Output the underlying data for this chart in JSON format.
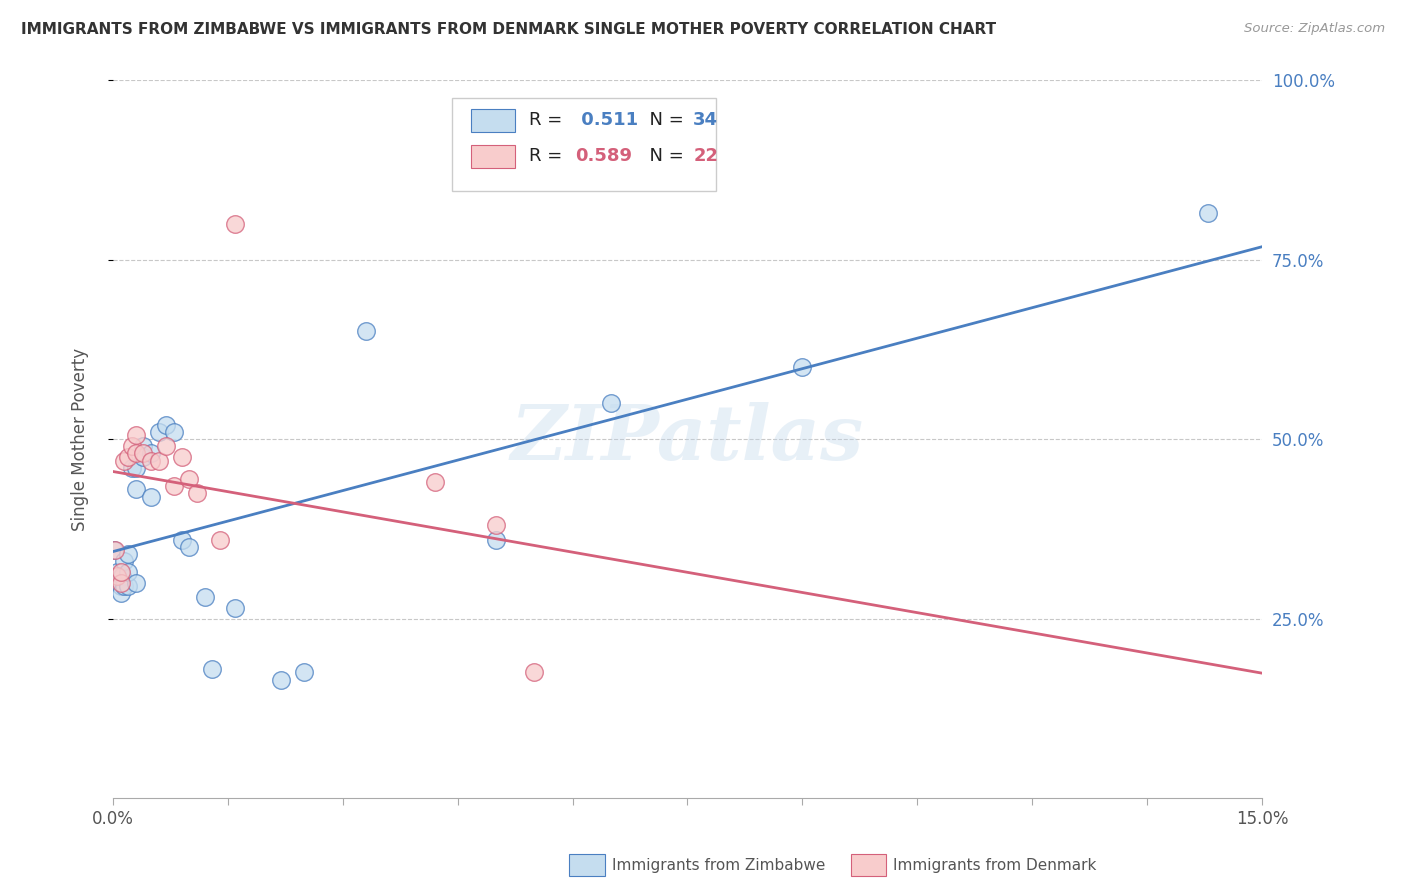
{
  "title": "IMMIGRANTS FROM ZIMBABWE VS IMMIGRANTS FROM DENMARK SINGLE MOTHER POVERTY CORRELATION CHART",
  "source": "Source: ZipAtlas.com",
  "ylabel": "Single Mother Poverty",
  "legend_label_blue": "Immigrants from Zimbabwe",
  "legend_label_pink": "Immigrants from Denmark",
  "R_blue": 0.511,
  "N_blue": 34,
  "R_pink": 0.589,
  "N_pink": 22,
  "x_min": 0.0,
  "x_max": 0.15,
  "y_min": 0.0,
  "y_max": 1.0,
  "watermark": "ZIPatlas",
  "blue_scatter_x": [
    0.0002,
    0.0005,
    0.0008,
    0.001,
    0.001,
    0.0012,
    0.0015,
    0.0015,
    0.002,
    0.002,
    0.002,
    0.0025,
    0.003,
    0.003,
    0.003,
    0.004,
    0.004,
    0.005,
    0.005,
    0.006,
    0.007,
    0.008,
    0.009,
    0.01,
    0.012,
    0.013,
    0.016,
    0.022,
    0.025,
    0.033,
    0.05,
    0.065,
    0.09,
    0.143
  ],
  "blue_scatter_y": [
    0.345,
    0.315,
    0.305,
    0.295,
    0.285,
    0.31,
    0.295,
    0.33,
    0.295,
    0.315,
    0.34,
    0.46,
    0.3,
    0.43,
    0.46,
    0.49,
    0.475,
    0.48,
    0.42,
    0.51,
    0.52,
    0.51,
    0.36,
    0.35,
    0.28,
    0.18,
    0.265,
    0.165,
    0.175,
    0.65,
    0.36,
    0.55,
    0.6,
    0.815
  ],
  "pink_scatter_x": [
    0.0003,
    0.0005,
    0.001,
    0.001,
    0.0015,
    0.002,
    0.0025,
    0.003,
    0.003,
    0.004,
    0.005,
    0.006,
    0.007,
    0.008,
    0.009,
    0.01,
    0.011,
    0.014,
    0.016,
    0.042,
    0.05,
    0.055
  ],
  "pink_scatter_y": [
    0.345,
    0.31,
    0.3,
    0.315,
    0.47,
    0.475,
    0.49,
    0.48,
    0.505,
    0.48,
    0.47,
    0.47,
    0.49,
    0.435,
    0.475,
    0.445,
    0.425,
    0.36,
    0.8,
    0.44,
    0.38,
    0.175
  ],
  "blue_color": "#A8C8E8",
  "pink_color": "#F4AABC",
  "blue_scatter_fill": "#C5DDEF",
  "pink_scatter_fill": "#F8CCCC",
  "blue_line_color": "#4A7FC1",
  "pink_line_color": "#D4607A",
  "title_color": "#333333",
  "right_axis_color": "#4A7FC1",
  "background_color": "#FFFFFF",
  "grid_color": "#C8C8C8"
}
